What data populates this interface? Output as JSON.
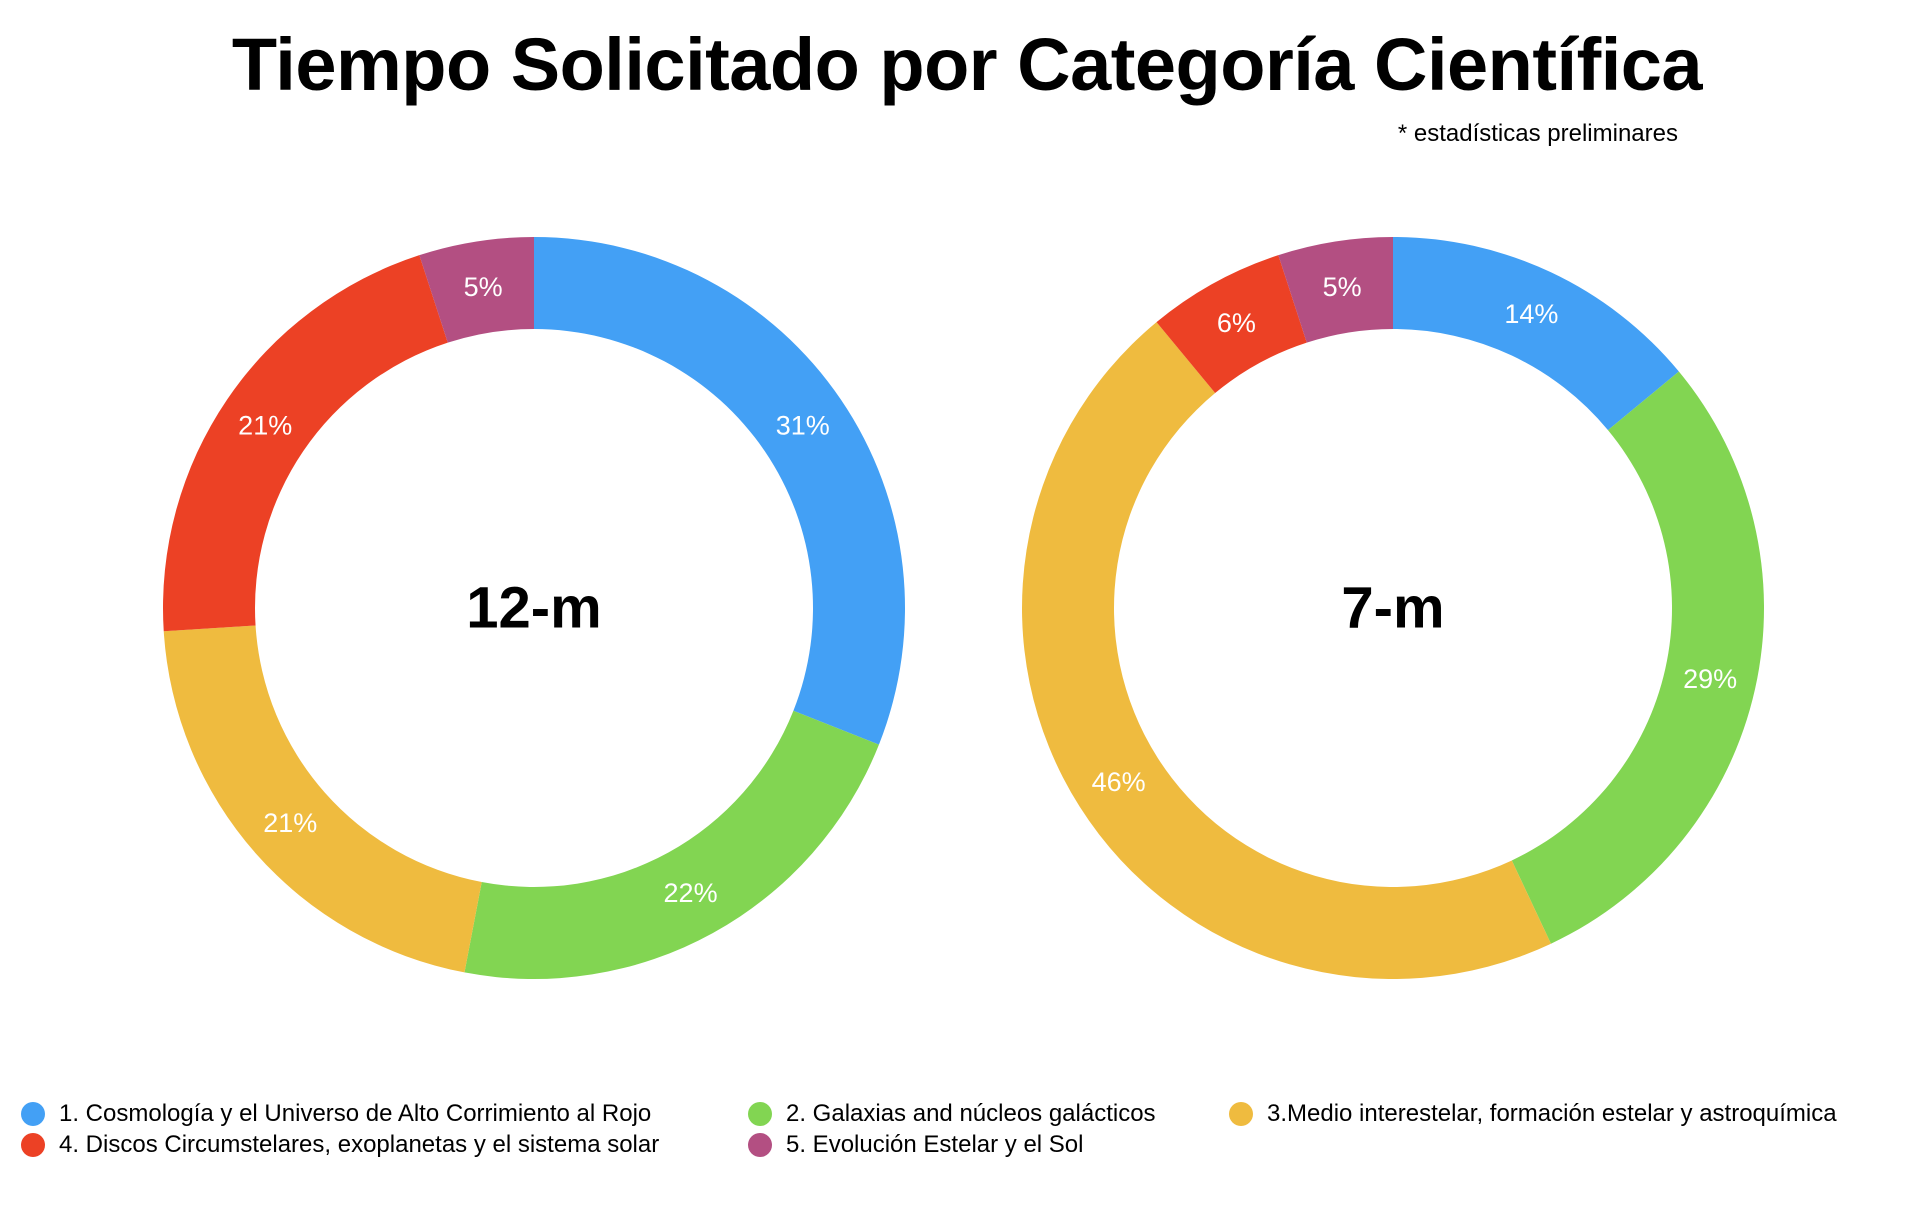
{
  "chart_data": {
    "type": "pie",
    "variant": "donut",
    "title": "Tiempo Solicitado por Categoría Científica",
    "subtitle": "* estadísticas preliminares",
    "categories": [
      "1. Cosmología y el Universo de Alto Corrimiento al Rojo",
      "2. Galaxias and núcleos galácticos",
      "3.Medio interestelar, formación estelar y astroquímica",
      "4. Discos Circumstelares, exoplanetas y el sistema solar",
      "5. Evolución Estelar y el Sol"
    ],
    "colors": [
      "#43a0f5",
      "#82d552",
      "#efbb3f",
      "#ec4125",
      "#b34f82"
    ],
    "series": [
      {
        "name": "12-m",
        "values": [
          31,
          22,
          21,
          21,
          5
        ],
        "labels": [
          "31%",
          "22%",
          "21%",
          "21%",
          "5%"
        ]
      },
      {
        "name": "7-m",
        "values": [
          14,
          29,
          46,
          6,
          5
        ],
        "labels": [
          "14%",
          "29%",
          "46%",
          "6%",
          "5%"
        ]
      }
    ],
    "legend_position": "bottom"
  }
}
